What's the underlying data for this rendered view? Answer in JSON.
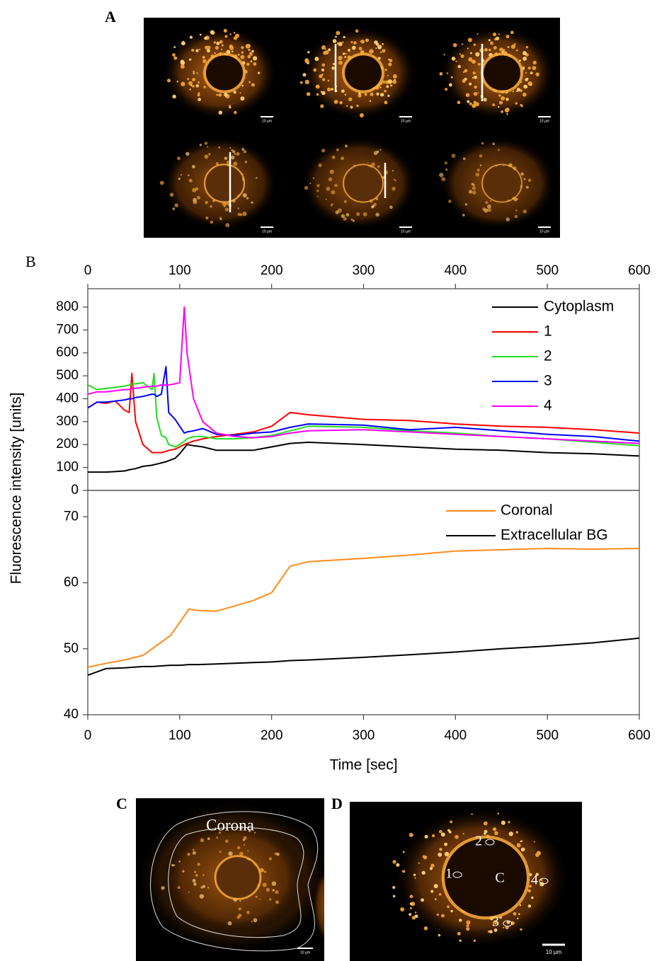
{
  "panel_labels": [
    "A",
    "B",
    "C",
    "D"
  ],
  "image_annotations": {
    "corona": "Corona",
    "roi_labels": [
      "1",
      "2",
      "3",
      "4",
      "C"
    ],
    "scale_bar": "10 µm"
  },
  "chart_data": [
    {
      "type": "line",
      "xaxis": "top",
      "legend": "upper right",
      "x": [
        0,
        10,
        20,
        30,
        40,
        45,
        48,
        52,
        60,
        70,
        72,
        75,
        80,
        85,
        88,
        95,
        100,
        105,
        108,
        115,
        125,
        140,
        160,
        180,
        200,
        220,
        240,
        300,
        350,
        400,
        450,
        500,
        550,
        600
      ],
      "xlim": [
        0,
        600
      ],
      "xticks": [
        0,
        100,
        200,
        300,
        400,
        500,
        600
      ],
      "ylim": [
        0,
        880
      ],
      "yticks": [
        0,
        100,
        200,
        300,
        400,
        500,
        600,
        700,
        800
      ],
      "series": [
        {
          "name": "Cytoplasm",
          "color": "#000000",
          "values": [
            80,
            80,
            80,
            82,
            85,
            90,
            92,
            95,
            105,
            110,
            112,
            115,
            120,
            125,
            130,
            140,
            160,
            185,
            200,
            195,
            190,
            175,
            175,
            175,
            190,
            205,
            210,
            200,
            190,
            180,
            175,
            165,
            160,
            150
          ]
        },
        {
          "name": "1",
          "color": "#ff0000",
          "values": [
            360,
            385,
            380,
            390,
            350,
            340,
            510,
            300,
            200,
            165,
            165,
            165,
            165,
            170,
            175,
            180,
            190,
            200,
            205,
            215,
            225,
            235,
            245,
            255,
            280,
            340,
            330,
            310,
            305,
            290,
            280,
            275,
            265,
            250
          ]
        },
        {
          "name": "2",
          "color": "#22dd22",
          "values": [
            460,
            440,
            445,
            450,
            455,
            460,
            465,
            465,
            470,
            440,
            510,
            320,
            240,
            230,
            200,
            190,
            200,
            215,
            225,
            235,
            235,
            225,
            225,
            230,
            240,
            260,
            280,
            275,
            260,
            250,
            235,
            225,
            210,
            195
          ]
        },
        {
          "name": "3",
          "color": "#0000ff",
          "values": [
            360,
            385,
            385,
            390,
            395,
            400,
            400,
            405,
            410,
            420,
            420,
            410,
            420,
            540,
            340,
            310,
            280,
            250,
            255,
            260,
            270,
            245,
            240,
            250,
            255,
            275,
            290,
            285,
            265,
            275,
            260,
            245,
            235,
            215
          ]
        },
        {
          "name": "4",
          "color": "#ff00ff",
          "values": [
            420,
            430,
            430,
            435,
            440,
            440,
            445,
            445,
            450,
            455,
            455,
            455,
            460,
            460,
            460,
            465,
            470,
            800,
            600,
            400,
            300,
            250,
            235,
            230,
            235,
            250,
            260,
            265,
            255,
            245,
            235,
            225,
            215,
            205
          ]
        }
      ]
    },
    {
      "type": "line",
      "xaxis": "bottom",
      "legend": "upper right",
      "x_label": "Time [sec]",
      "y_label": "Fluorescence intensity [units]",
      "x": [
        0,
        20,
        40,
        60,
        70,
        80,
        90,
        100,
        110,
        120,
        140,
        160,
        180,
        200,
        210,
        220,
        240,
        300,
        350,
        400,
        450,
        500,
        550,
        600
      ],
      "xlim": [
        0,
        600
      ],
      "xticks": [
        0,
        100,
        200,
        300,
        400,
        500,
        600
      ],
      "ylim": [
        40,
        74
      ],
      "yticks": [
        40,
        50,
        60,
        70
      ],
      "series": [
        {
          "name": "Coronal",
          "color": "#ff8c1a",
          "values": [
            47.2,
            47.8,
            48.3,
            49,
            50,
            51,
            52,
            54,
            56,
            55.8,
            55.7,
            56.5,
            57.3,
            58.5,
            60.5,
            62.5,
            63.2,
            63.7,
            64.2,
            64.8,
            65,
            65.2,
            65.1,
            65.2
          ]
        },
        {
          "name": "Extracellular BG",
          "color": "#000000",
          "values": [
            46,
            47,
            47.1,
            47.3,
            47.3,
            47.4,
            47.5,
            47.5,
            47.6,
            47.6,
            47.7,
            47.8,
            47.9,
            48,
            48.1,
            48.2,
            48.3,
            48.7,
            49.1,
            49.5,
            50,
            50.4,
            50.9,
            51.6
          ]
        }
      ]
    }
  ]
}
